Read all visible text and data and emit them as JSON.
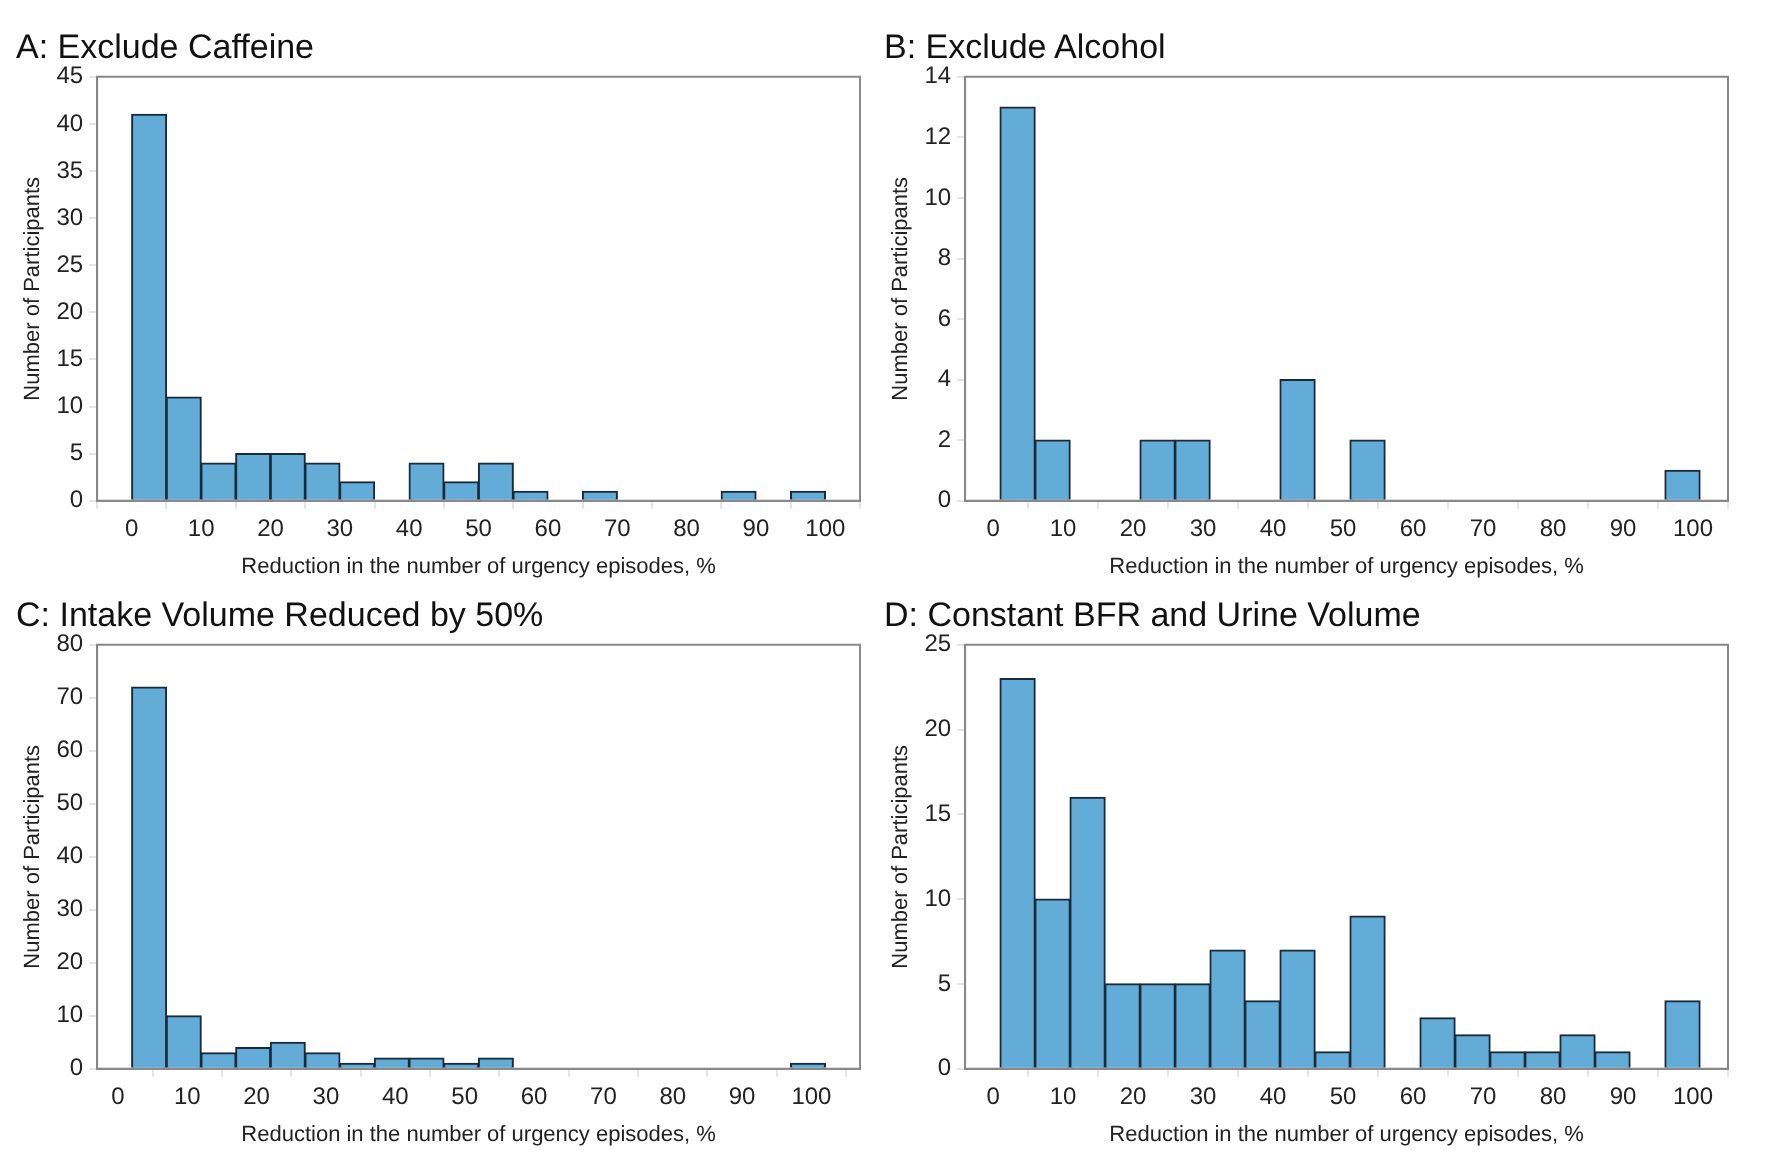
{
  "chart_data": [
    {
      "type": "histogram",
      "title": "A: Exclude Caffeine",
      "xlabel": "Reduction in the number of urgency episodes, %",
      "ylabel": "Number of Participants",
      "color": "#64acd8",
      "grid": false,
      "bins": [
        0,
        5,
        10,
        15,
        20,
        25,
        30,
        35,
        40,
        45,
        50,
        55,
        60,
        65,
        70,
        75,
        80,
        85,
        90,
        95,
        100
      ],
      "values": [
        41,
        11,
        4,
        5,
        5,
        4,
        2,
        0,
        4,
        2,
        4,
        1,
        0,
        1,
        0,
        0,
        0,
        1,
        0,
        1
      ],
      "xlim": [
        -5,
        105
      ],
      "xticks": [
        0,
        10,
        20,
        30,
        40,
        50,
        60,
        70,
        80,
        90,
        100
      ],
      "ylim": [
        0,
        45
      ],
      "yticks": [
        0,
        5,
        10,
        15,
        20,
        25,
        30,
        35,
        40,
        45
      ]
    },
    {
      "type": "histogram",
      "title": "B: Exclude Alcohol",
      "xlabel": "Reduction in the number of urgency episodes, %",
      "ylabel": "Number of Participants",
      "color": "#64acd8",
      "grid": false,
      "bins": [
        1,
        6,
        11,
        16,
        21,
        26,
        31,
        36,
        41,
        46,
        51,
        56,
        61,
        66,
        71,
        76,
        81,
        86,
        91,
        96,
        101
      ],
      "values": [
        13,
        2,
        0,
        0,
        2,
        2,
        0,
        0,
        4,
        0,
        2,
        0,
        0,
        0,
        0,
        0,
        0,
        0,
        0,
        1
      ],
      "xlim": [
        -4,
        105
      ],
      "xticks": [
        0,
        10,
        20,
        30,
        40,
        50,
        60,
        70,
        80,
        90,
        100
      ],
      "ylim": [
        0,
        14
      ],
      "yticks": [
        0,
        2,
        4,
        6,
        8,
        10,
        12,
        14
      ]
    },
    {
      "type": "histogram",
      "title": "C: Intake Volume Reduced by 50%",
      "xlabel": "Reduction in the number of urgency episodes, %",
      "ylabel": "Number of Participants",
      "color": "#64acd8",
      "grid": false,
      "bins": [
        2,
        7,
        12,
        17,
        22,
        27,
        32,
        37,
        42,
        47,
        52,
        57,
        62,
        67,
        72,
        77,
        82,
        87,
        92,
        97,
        102
      ],
      "values": [
        72,
        10,
        3,
        4,
        5,
        3,
        1,
        2,
        2,
        1,
        2,
        0,
        0,
        0,
        0,
        0,
        0,
        0,
        0,
        1
      ],
      "xlim": [
        -3,
        107
      ],
      "xticks": [
        0,
        10,
        20,
        30,
        40,
        50,
        60,
        70,
        80,
        90,
        100
      ],
      "ylim": [
        0,
        80
      ],
      "yticks": [
        0,
        10,
        20,
        30,
        40,
        50,
        60,
        70,
        80
      ]
    },
    {
      "type": "histogram",
      "title": "D: Constant BFR and Urine Volume",
      "xlabel": "Reduction in the number of urgency episodes, %",
      "ylabel": "Number of Participants",
      "color": "#64acd8",
      "grid": false,
      "bins": [
        1,
        6,
        11,
        16,
        21,
        26,
        31,
        36,
        41,
        46,
        51,
        56,
        61,
        66,
        71,
        76,
        81,
        86,
        91,
        96,
        101
      ],
      "values": [
        23,
        10,
        16,
        5,
        5,
        5,
        7,
        4,
        7,
        1,
        9,
        0,
        3,
        2,
        1,
        1,
        2,
        1,
        0,
        4
      ],
      "xlim": [
        -4,
        105
      ],
      "xticks": [
        0,
        10,
        20,
        30,
        40,
        50,
        60,
        70,
        80,
        90,
        100
      ],
      "ylim": [
        0,
        25
      ],
      "yticks": [
        0,
        5,
        10,
        15,
        20,
        25
      ]
    }
  ]
}
